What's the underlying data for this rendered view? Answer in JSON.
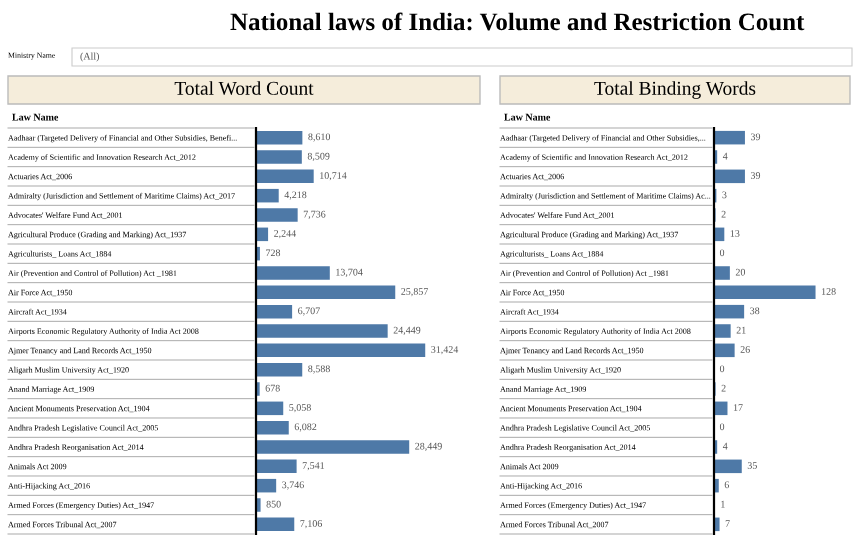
{
  "chart_data": [
    {
      "type": "bar",
      "orientation": "horizontal",
      "title": "National laws of India: Volume and Restriction Count",
      "subtitle": "Total Word Count",
      "annotations": [
        "Ministry Name",
        "(All)",
        "Law Name"
      ],
      "grid": false,
      "legend": false,
      "categories": [
        "Aadhaar (Targeted Delivery of Financial and Other Subsidies, Benefi...",
        "Academy of Scientific and Innovation Research Act_2012",
        "Actuaries Act_2006",
        "Admiralty (Jurisdiction and Settlement of Maritime Claims) Act_2017",
        "Advocates' Welfare Fund Act_2001",
        "Agricultural Produce (Grading and Marking) Act_1937",
        "Agriculturists_ Loans Act_1884",
        "Air (Prevention and Control of Pollution) Act _1981",
        "Air Force Act_1950",
        "Aircraft Act_1934",
        "Airports Economic Regulatory Authority of India Act 2008",
        "Ajmer Tenancy and Land Records Act_1950",
        "Aligarh Muslim University Act_1920",
        "Anand Marriage Act_1909",
        "Ancient Monuments Preservation Act_1904",
        "Andhra Pradesh Legislative Council Act_2005",
        "Andhra Pradesh Reorganisation Act_2014",
        "Animals Act 2009",
        "Anti-Hijacking Act_2016",
        "Armed Forces (Emergency Duties) Act_1947",
        "Armed Forces Tribunal Act_2007"
      ],
      "series": [
        {
          "color": "#4e79a7",
          "values": [
            8610,
            8509,
            10714,
            4218,
            7736,
            2244,
            728,
            13704,
            25857,
            6707,
            24449,
            31424,
            8588,
            678,
            5058,
            6082,
            28449,
            7541,
            3746,
            850,
            7106
          ],
          "value_labels": [
            "8,610",
            "8,509",
            "10,714",
            "4,218",
            "7,736",
            "2,244",
            "728",
            "13,704",
            "25,857",
            "6,707",
            "24,449",
            "31,424",
            "8,588",
            "678",
            "5,058",
            "6,082",
            "28,449",
            "7,541",
            "3,746",
            "850",
            "7,106"
          ]
        }
      ]
    },
    {
      "type": "bar",
      "orientation": "horizontal",
      "title": "Total Binding Words",
      "annotations": [
        "Law Name"
      ],
      "data_labels": true,
      "grid": false,
      "legend": false,
      "categories": [
        "Aadhaar (Targeted Delivery of Financial and Other Subsidies,...",
        "Academy of Scientific and Innovation Research Act_2012",
        "Actuaries Act_2006",
        "Admiralty (Jurisdiction and Settlement of Maritime Claims) Ac...",
        "Advocates' Welfare Fund Act_2001",
        "Agricultural Produce (Grading and Marking) Act_1937",
        "Agriculturists_ Loans Act_1884",
        "Air (Prevention and Control of Pollution) Act _1981",
        "Air Force Act_1950",
        "Aircraft Act_1934",
        "Airports Economic Regulatory Authority of India Act 2008",
        "Ajmer Tenancy and Land Records Act_1950",
        "Aligarh Muslim University Act_1920",
        "Anand Marriage Act_1909",
        "Ancient Monuments Preservation Act_1904",
        "Andhra Pradesh Legislative Council Act_2005",
        "Andhra Pradesh Reorganisation Act_2014",
        "Animals Act 2009",
        "Anti-Hijacking Act_2016",
        "Armed Forces (Emergency Duties) Act_1947",
        "Armed Forces Tribunal Act_2007"
      ],
      "series": [
        {
          "color": "#4e79a7",
          "values": [
            39,
            4,
            39,
            3,
            2,
            13,
            0,
            20,
            128,
            38,
            21,
            26,
            0,
            2,
            17,
            0,
            4,
            35,
            6,
            1,
            7
          ]
        }
      ]
    }
  ]
}
